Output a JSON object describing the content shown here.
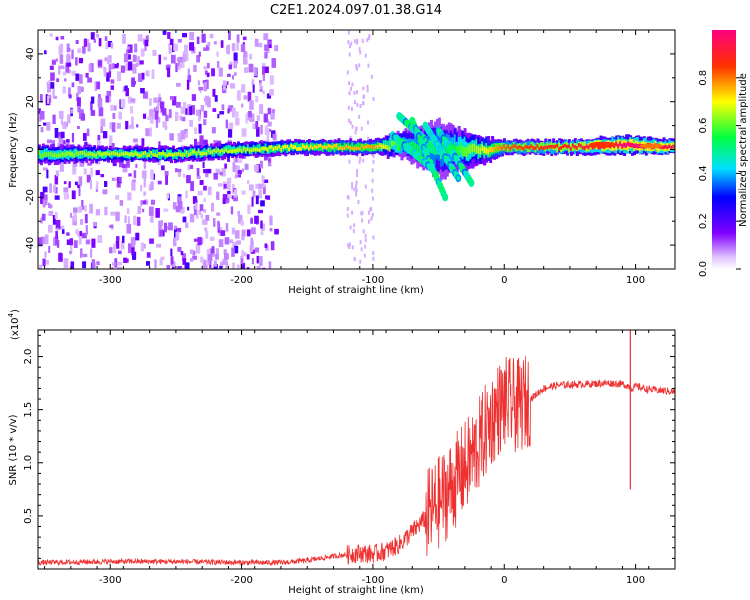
{
  "title": "C2E1.2024.097.01.38.G14",
  "chart_data": [
    {
      "type": "heatmap",
      "xlabel": "Height of straight line (km)",
      "ylabel": "Frequency (Hz)",
      "xlim": [
        -355,
        130
      ],
      "ylim": [
        -50,
        50
      ],
      "x_ticks": [
        -300,
        -200,
        -100,
        0,
        100
      ],
      "y_ticks": [
        -40,
        -20,
        0,
        20,
        40
      ],
      "colorbar": {
        "label": "Normalized spectral amplitude",
        "ticks": [
          "0.0",
          "0.2",
          "0.4",
          "0.6",
          "0.8"
        ],
        "range": [
          0,
          1
        ],
        "colormap": "rainbow"
      },
      "description_points": [
        {
          "x": -355,
          "center_hz": -2,
          "halfwidth_hz": 4,
          "amplitude": 0.55
        },
        {
          "x": -300,
          "center_hz": -2,
          "halfwidth_hz": 3,
          "amplitude": 0.6
        },
        {
          "x": -250,
          "center_hz": -2,
          "halfwidth_hz": 3,
          "amplitude": 0.6
        },
        {
          "x": -200,
          "center_hz": 0,
          "halfwidth_hz": 3,
          "amplitude": 0.6
        },
        {
          "x": -150,
          "center_hz": 1,
          "halfwidth_hz": 3,
          "amplitude": 0.65
        },
        {
          "x": -100,
          "center_hz": 1,
          "halfwidth_hz": 3,
          "amplitude": 0.7
        },
        {
          "x": -80,
          "center_hz": 2,
          "halfwidth_hz": 5,
          "amplitude": 0.5
        },
        {
          "x": -50,
          "center_hz": 0,
          "halfwidth_hz": 12,
          "amplitude": 0.45
        },
        {
          "x": -20,
          "center_hz": 0,
          "halfwidth_hz": 6,
          "amplitude": 0.6
        },
        {
          "x": 0,
          "center_hz": 1,
          "halfwidth_hz": 3,
          "amplitude": 0.75
        },
        {
          "x": 50,
          "center_hz": 1,
          "halfwidth_hz": 3,
          "amplitude": 0.8
        },
        {
          "x": 90,
          "center_hz": 2,
          "halfwidth_hz": 4,
          "amplitude": 0.9
        },
        {
          "x": 130,
          "center_hz": 1,
          "halfwidth_hz": 3,
          "amplitude": 0.85
        }
      ]
    },
    {
      "type": "line",
      "xlabel": "Height of straight line (km)",
      "ylabel": "SNR (10 * v/v)",
      "y_multiplier": "(x10",
      "y_multiplier_exp": "4",
      "y_multiplier_close": ")",
      "xlim": [
        -355,
        130
      ],
      "ylim": [
        0,
        22500
      ],
      "x_ticks": [
        -300,
        -200,
        -100,
        0,
        100
      ],
      "y_ticks": [
        5000,
        10000,
        15000,
        20000
      ],
      "y_tick_labels": [
        "0.5",
        "1.0",
        "1.5",
        "2.0"
      ],
      "color": "#ee3030",
      "series": [
        {
          "x": [
            -355,
            -300,
            -250,
            -200,
            -170,
            -150,
            -130,
            -110,
            -100,
            -90,
            -80,
            -70,
            -60,
            -50,
            -40,
            -30,
            -20,
            -15,
            -10,
            -5,
            0,
            10,
            20,
            30,
            40,
            60,
            80,
            90,
            95,
            97,
            100,
            110,
            120,
            130
          ],
          "y": [
            600,
            700,
            700,
            600,
            600,
            800,
            1200,
            1500,
            1400,
            1700,
            2300,
            3500,
            4800,
            6200,
            7800,
            9500,
            11500,
            12800,
            14000,
            15000,
            15600,
            15300,
            16000,
            17000,
            17300,
            17400,
            17500,
            17400,
            17200,
            17000,
            17200,
            16900,
            16800,
            16700
          ]
        }
      ],
      "spikes": [
        {
          "x": 96,
          "y_min": 7500,
          "y_max": 22500
        }
      ]
    }
  ]
}
